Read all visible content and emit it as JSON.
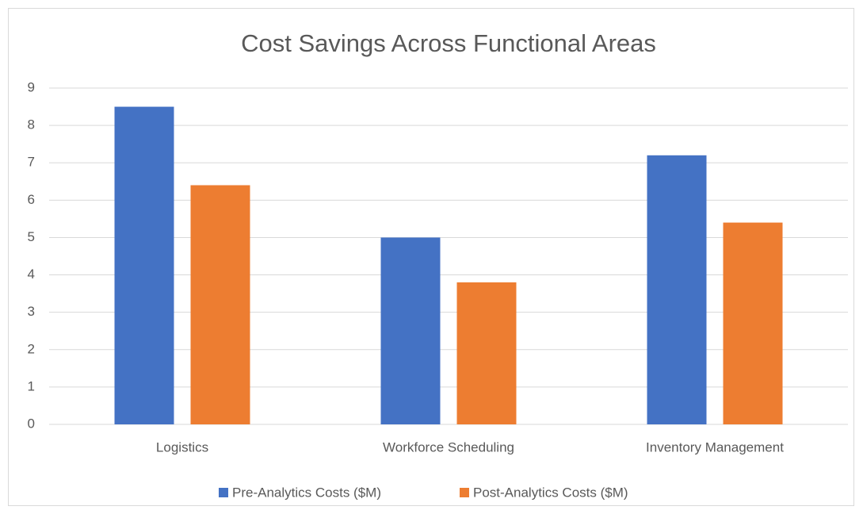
{
  "chart_data": {
    "type": "bar",
    "title": "Cost Savings Across Functional Areas",
    "categories": [
      "Logistics",
      "Workforce Scheduling",
      "Inventory Management"
    ],
    "series": [
      {
        "name": "Pre-Analytics Costs ($M)",
        "color": "#4472c4",
        "values": [
          8.5,
          5.0,
          7.2
        ]
      },
      {
        "name": "Post-Analytics Costs ($M)",
        "color": "#ed7d31",
        "values": [
          6.4,
          3.8,
          5.4
        ]
      }
    ],
    "ylim": [
      0,
      9
    ],
    "yticks": [
      0,
      1,
      2,
      3,
      4,
      5,
      6,
      7,
      8,
      9
    ],
    "grid": true,
    "legend": "bottom"
  }
}
